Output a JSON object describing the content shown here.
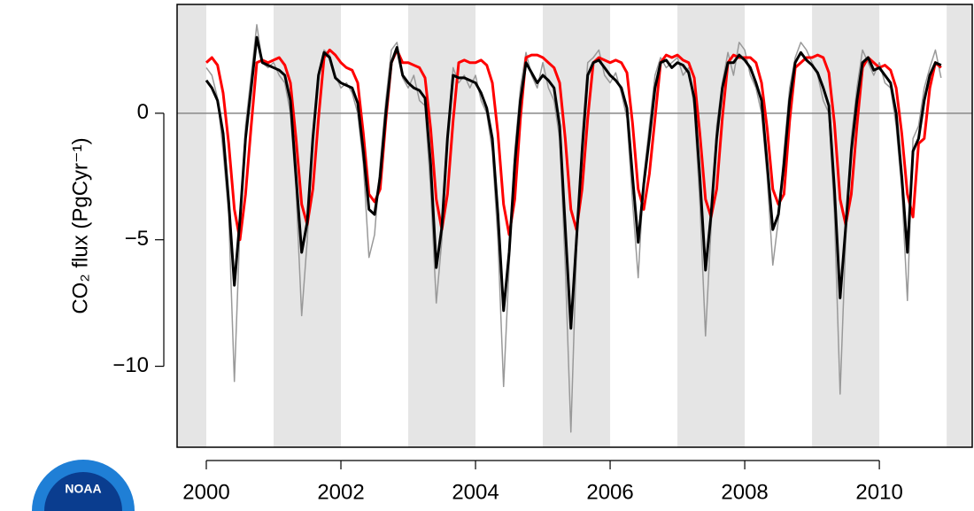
{
  "chart_data": {
    "type": "line",
    "ylabel": "CO₂ flux (PgCyr⁻¹)",
    "logo_text": "NOAA",
    "xlim": [
      1999.566,
      2011.38
    ],
    "ylim": [
      -13.2,
      4.3
    ],
    "xticks": [
      2000,
      2002,
      2004,
      2006,
      2008,
      2010
    ],
    "yticks": [
      {
        "value": -10,
        "label": "−10"
      },
      {
        "value": -5,
        "label": "−5"
      },
      0
    ],
    "hline": 0,
    "shade_alternate_years": true,
    "x": [
      2000,
      2000.083,
      2000.167,
      2000.25,
      2000.333,
      2000.417,
      2000.5,
      2000.583,
      2000.667,
      2000.75,
      2000.833,
      2000.917,
      2001,
      2001.083,
      2001.167,
      2001.25,
      2001.333,
      2001.417,
      2001.5,
      2001.583,
      2001.667,
      2001.75,
      2001.833,
      2001.917,
      2002,
      2002.083,
      2002.167,
      2002.25,
      2002.333,
      2002.417,
      2002.5,
      2002.583,
      2002.667,
      2002.75,
      2002.833,
      2002.917,
      2003,
      2003.083,
      2003.167,
      2003.25,
      2003.333,
      2003.417,
      2003.5,
      2003.583,
      2003.667,
      2003.75,
      2003.833,
      2003.917,
      2004,
      2004.083,
      2004.167,
      2004.25,
      2004.333,
      2004.417,
      2004.5,
      2004.583,
      2004.667,
      2004.75,
      2004.833,
      2004.917,
      2005,
      2005.083,
      2005.167,
      2005.25,
      2005.333,
      2005.417,
      2005.5,
      2005.583,
      2005.667,
      2005.75,
      2005.833,
      2005.917,
      2006,
      2006.083,
      2006.167,
      2006.25,
      2006.333,
      2006.417,
      2006.5,
      2006.583,
      2006.667,
      2006.75,
      2006.833,
      2006.917,
      2007,
      2007.083,
      2007.167,
      2007.25,
      2007.333,
      2007.417,
      2007.5,
      2007.583,
      2007.667,
      2007.75,
      2007.833,
      2007.917,
      2008,
      2008.083,
      2008.167,
      2008.25,
      2008.333,
      2008.417,
      2008.5,
      2008.583,
      2008.667,
      2008.75,
      2008.833,
      2008.917,
      2009,
      2009.083,
      2009.167,
      2009.25,
      2009.333,
      2009.417,
      2009.5,
      2009.583,
      2009.667,
      2009.75,
      2009.833,
      2009.917,
      2010,
      2010.083,
      2010.167,
      2010.25,
      2010.333,
      2010.417,
      2010.5,
      2010.583,
      2010.667,
      2010.75,
      2010.833,
      2010.917
    ],
    "series": [
      {
        "color": "#999999",
        "width": 1.5,
        "values": [
          1.8,
          1.5,
          0.6,
          -1.5,
          -4.0,
          -10.6,
          -4.5,
          -0.5,
          1.5,
          3.5,
          2.0,
          1.8,
          2.0,
          1.5,
          1.2,
          0.0,
          -3.0,
          -8.0,
          -5.0,
          -1.0,
          1.6,
          2.5,
          2.3,
          1.5,
          1.0,
          1.2,
          0.8,
          0.0,
          -2.0,
          -5.7,
          -4.8,
          -2.0,
          0.5,
          2.5,
          2.8,
          1.4,
          1.0,
          1.5,
          0.5,
          0.3,
          -3.0,
          -7.5,
          -5.0,
          -1.0,
          1.8,
          1.2,
          1.5,
          1.0,
          1.5,
          0.5,
          0.0,
          -1.5,
          -5.0,
          -10.8,
          -6.0,
          -1.5,
          1.0,
          2.4,
          1.5,
          1.0,
          2.0,
          1.0,
          0.5,
          -1.0,
          -6.0,
          -12.6,
          -5.5,
          -1.0,
          2.0,
          2.2,
          2.5,
          1.5,
          1.2,
          1.6,
          0.8,
          -0.2,
          -3.5,
          -6.5,
          -2.5,
          -0.5,
          1.5,
          2.2,
          1.8,
          2.0,
          2.2,
          1.5,
          1.8,
          0.2,
          -3.5,
          -8.8,
          -4.5,
          -0.5,
          1.2,
          2.4,
          1.5,
          2.8,
          2.5,
          1.5,
          1.0,
          0.0,
          -2.5,
          -6.0,
          -4.2,
          -1.5,
          1.0,
          2.2,
          2.8,
          2.5,
          2.0,
          1.5,
          0.5,
          0.0,
          -4.0,
          -11.1,
          -5.0,
          -1.0,
          1.0,
          2.5,
          2.0,
          1.5,
          2.0,
          1.2,
          1.0,
          -0.5,
          -3.0,
          -7.4,
          -1.0,
          -0.5,
          1.0,
          1.8,
          2.5,
          1.4
        ]
      },
      {
        "color": "#ff0000",
        "width": 3,
        "values": [
          2.0,
          2.2,
          1.9,
          0.8,
          -1.2,
          -3.8,
          -5.0,
          -3.2,
          -0.5,
          2.0,
          2.1,
          2.0,
          2.1,
          2.2,
          1.9,
          1.2,
          -1.0,
          -3.6,
          -4.4,
          -3.0,
          -0.2,
          2.2,
          2.5,
          2.3,
          2.0,
          1.8,
          1.7,
          1.2,
          -0.8,
          -3.2,
          -3.5,
          -3.0,
          -0.3,
          2.0,
          2.5,
          2.0,
          2.0,
          1.9,
          1.8,
          1.4,
          -0.6,
          -3.4,
          -4.6,
          -3.2,
          -0.3,
          2.0,
          2.1,
          2.0,
          2.0,
          2.1,
          1.9,
          1.2,
          -0.8,
          -3.6,
          -4.8,
          -3.4,
          -0.2,
          2.2,
          2.3,
          2.3,
          2.2,
          2.0,
          1.8,
          1.2,
          -1.0,
          -3.8,
          -4.6,
          -3.0,
          -0.2,
          2.0,
          2.2,
          2.1,
          2.0,
          2.1,
          2.0,
          1.6,
          -0.4,
          -3.0,
          -3.8,
          -2.4,
          -0.2,
          2.0,
          2.3,
          2.2,
          2.3,
          2.1,
          2.0,
          1.4,
          -0.8,
          -3.4,
          -4.1,
          -3.0,
          -0.2,
          2.0,
          2.3,
          2.2,
          2.2,
          2.2,
          2.0,
          1.2,
          -0.6,
          -3.0,
          -3.6,
          -3.2,
          -0.3,
          1.8,
          2.0,
          2.2,
          2.2,
          2.3,
          2.2,
          1.6,
          -0.4,
          -3.4,
          -4.4,
          -3.2,
          -0.5,
          1.8,
          2.2,
          2.0,
          1.8,
          1.9,
          1.7,
          1.0,
          -0.8,
          -3.2,
          -4.1,
          -1.2,
          -1.0,
          1.0,
          2.0,
          1.8
        ]
      },
      {
        "color": "#000000",
        "width": 3,
        "values": [
          1.3,
          1.0,
          0.5,
          -0.8,
          -3.5,
          -6.8,
          -4.2,
          -1.0,
          1.0,
          3.0,
          2.0,
          1.9,
          1.8,
          1.7,
          1.5,
          0.5,
          -2.5,
          -5.5,
          -4.3,
          -1.0,
          1.5,
          2.4,
          2.2,
          1.4,
          1.2,
          1.1,
          1.0,
          0.4,
          -1.5,
          -3.8,
          -4.0,
          -2.5,
          0.0,
          2.0,
          2.6,
          1.5,
          1.2,
          1.0,
          0.9,
          0.6,
          -2.0,
          -6.1,
          -4.5,
          -1.0,
          1.5,
          1.4,
          1.4,
          1.3,
          1.2,
          0.8,
          0.2,
          -1.0,
          -4.0,
          -7.8,
          -5.5,
          -2.0,
          0.5,
          2.0,
          1.6,
          1.2,
          1.5,
          1.3,
          1.0,
          -0.5,
          -4.5,
          -8.5,
          -5.0,
          -1.5,
          1.5,
          2.0,
          2.1,
          1.8,
          1.5,
          1.3,
          1.0,
          0.2,
          -2.5,
          -5.1,
          -2.8,
          -1.0,
          1.0,
          2.0,
          2.1,
          1.8,
          2.0,
          1.9,
          1.6,
          0.6,
          -2.5,
          -6.2,
          -4.0,
          -1.0,
          1.0,
          2.0,
          2.0,
          2.3,
          2.1,
          1.8,
          1.2,
          0.5,
          -2.0,
          -4.6,
          -4.0,
          -2.0,
          0.5,
          2.0,
          2.4,
          2.1,
          1.9,
          1.6,
          1.0,
          0.3,
          -3.0,
          -7.3,
          -4.5,
          -1.5,
          0.5,
          2.0,
          2.2,
          1.7,
          1.8,
          1.5,
          1.2,
          0.0,
          -2.5,
          -5.5,
          -1.5,
          -1.0,
          0.5,
          1.5,
          2.0,
          1.9
        ]
      }
    ]
  }
}
